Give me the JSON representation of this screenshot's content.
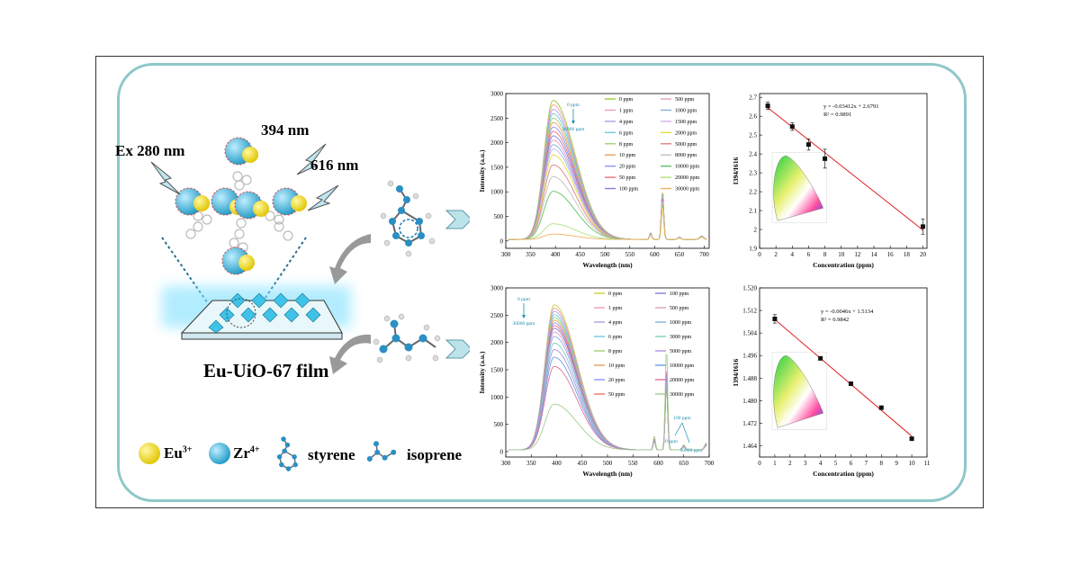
{
  "left": {
    "excitation_label": "Ex 280 nm",
    "emission1_label": "394 nm",
    "emission2_label": "616 nm",
    "film_label": "Eu-UiO-67 film",
    "legend": [
      {
        "label": "Eu",
        "sup": "3+",
        "color": "#f5e030"
      },
      {
        "label": "Zr",
        "sup": "4+",
        "color": "#35b1d6"
      },
      {
        "label": "styrene"
      },
      {
        "label": "isoprene"
      }
    ]
  },
  "chart_data": [
    {
      "type": "line",
      "id": "styrene-spectra",
      "xlabel": "Wavelength (nm)",
      "ylabel": "Intensity (a.u.)",
      "xlim": [
        300,
        710
      ],
      "ylim": [
        -150,
        3000
      ],
      "xticks": [
        300,
        350,
        400,
        450,
        500,
        550,
        600,
        650,
        700
      ],
      "yticks": [
        0,
        500,
        1000,
        1500,
        2000,
        2500,
        3000
      ],
      "annotation_top": "0 ppm",
      "annotation_bottom": "30000 ppm",
      "series": [
        {
          "name": "0 ppm",
          "peak": 2830,
          "p616": 1020,
          "color": "#9acd32"
        },
        {
          "name": "1 ppm",
          "peak": 2740,
          "p616": 1000,
          "color": "#f0a0b0"
        },
        {
          "name": "4 ppm",
          "peak": 2650,
          "p616": 980,
          "color": "#b0a0e0"
        },
        {
          "name": "6 ppm",
          "peak": 2560,
          "p616": 960,
          "color": "#70c8e0"
        },
        {
          "name": "8 ppm",
          "peak": 2470,
          "p616": 940,
          "color": "#a0d070"
        },
        {
          "name": "10 ppm",
          "peak": 2380,
          "p616": 920,
          "color": "#e8a060"
        },
        {
          "name": "20 ppm",
          "peak": 2290,
          "p616": 900,
          "color": "#9090ff"
        },
        {
          "name": "50 ppm",
          "peak": 2200,
          "p616": 880,
          "color": "#f07070"
        },
        {
          "name": "100 ppm",
          "peak": 2110,
          "p616": 860,
          "color": "#8080e0"
        },
        {
          "name": "500 ppm",
          "peak": 2020,
          "p616": 840,
          "color": "#e0a0c0"
        },
        {
          "name": "1000 ppm",
          "peak": 1930,
          "p616": 820,
          "color": "#80b0e0"
        },
        {
          "name": "1500 ppm",
          "peak": 1840,
          "p616": 800,
          "color": "#d0b0f0"
        },
        {
          "name": "2000 ppm",
          "peak": 1720,
          "p616": 780,
          "color": "#e0e040"
        },
        {
          "name": "5000 ppm",
          "peak": 1520,
          "p616": 760,
          "color": "#e08080"
        },
        {
          "name": "8000 ppm",
          "peak": 1280,
          "p616": 740,
          "color": "#c0c0c0"
        },
        {
          "name": "10000 ppm",
          "peak": 980,
          "p616": 720,
          "color": "#60c060"
        },
        {
          "name": "20000 ppm",
          "peak": 320,
          "p616": 700,
          "color": "#b0e080"
        },
        {
          "name": "30000 ppm",
          "peak": 110,
          "p616": 680,
          "color": "#f0b060"
        }
      ]
    },
    {
      "type": "scatter",
      "id": "styrene-linear",
      "xlabel": "Concentration (ppm)",
      "ylabel": "I394/I616",
      "xlim": [
        0,
        20.5
      ],
      "ylim": [
        1.9,
        2.72
      ],
      "xticks": [
        0,
        2,
        4,
        6,
        8,
        10,
        12,
        14,
        16,
        18,
        20
      ],
      "yticks": [
        1.9,
        2.0,
        2.1,
        2.2,
        2.3,
        2.4,
        2.5,
        2.6,
        2.7
      ],
      "equation": "y = -0.03412x + 2.6791",
      "r2": "R² = 0.9891",
      "x": [
        1,
        4,
        6,
        8,
        20
      ],
      "y": [
        2.655,
        2.545,
        2.45,
        2.375,
        2.015
      ],
      "err": [
        0.02,
        0.02,
        0.03,
        0.05,
        0.04
      ],
      "fit": {
        "slope": -0.03412,
        "intercept": 2.6791
      }
    },
    {
      "type": "line",
      "id": "isoprene-spectra",
      "xlabel": "Wavelength (nm)",
      "ylabel": "Intensity (a.u.)",
      "xlim": [
        300,
        700
      ],
      "ylim": [
        -100,
        3000
      ],
      "xticks": [
        300,
        350,
        400,
        450,
        500,
        550,
        600,
        650,
        700
      ],
      "yticks": [
        0,
        500,
        1000,
        1500,
        2000,
        2500,
        3000
      ],
      "annotation_top": "0 ppm",
      "annotation_bottom": "30000 ppm",
      "annotation2_top": "100 ppm",
      "annotation2_mid": "0 ppm",
      "annotation2_bottom": "30000 ppm",
      "series": [
        {
          "name": "0 ppm",
          "peak": 2660,
          "p616": 1180,
          "color": "#c8d040"
        },
        {
          "name": "1 ppm",
          "peak": 2600,
          "p616": 1200,
          "color": "#f0a0b0"
        },
        {
          "name": "4 ppm",
          "peak": 2540,
          "p616": 1220,
          "color": "#b0a0e0"
        },
        {
          "name": "6 ppm",
          "peak": 2480,
          "p616": 1240,
          "color": "#70c8e0"
        },
        {
          "name": "8 ppm",
          "peak": 2430,
          "p616": 1260,
          "color": "#a0d070"
        },
        {
          "name": "10 ppm",
          "peak": 2380,
          "p616": 1280,
          "color": "#e8a060"
        },
        {
          "name": "20 ppm",
          "peak": 2330,
          "p616": 1300,
          "color": "#9090ff"
        },
        {
          "name": "50 ppm",
          "peak": 2280,
          "p616": 1320,
          "color": "#f07070"
        },
        {
          "name": "100 ppm",
          "peak": 2230,
          "p616": 1340,
          "color": "#8080e0"
        },
        {
          "name": "500 ppm",
          "peak": 2160,
          "p616": 1360,
          "color": "#e0a0c0"
        },
        {
          "name": "1000 ppm",
          "peak": 2080,
          "p616": 1380,
          "color": "#80b0e0"
        },
        {
          "name": "3000 ppm",
          "peak": 1960,
          "p616": 1400,
          "color": "#80d0c0"
        },
        {
          "name": "5000 ppm",
          "peak": 1840,
          "p616": 1440,
          "color": "#b090e0"
        },
        {
          "name": "10000 ppm",
          "peak": 1700,
          "p616": 1500,
          "color": "#70a0e0"
        },
        {
          "name": "20000 ppm",
          "peak": 1530,
          "p616": 1560,
          "color": "#e070a0"
        },
        {
          "name": "30000 ppm",
          "peak": 840,
          "p616": 1900,
          "color": "#a0d090"
        }
      ]
    },
    {
      "type": "scatter",
      "id": "isoprene-linear",
      "xlabel": "Concentration (ppm)",
      "ylabel": "I394/I616",
      "xlim": [
        0,
        11
      ],
      "ylim": [
        1.46,
        1.52
      ],
      "xticks": [
        0,
        1,
        2,
        3,
        4,
        5,
        6,
        7,
        8,
        9,
        10,
        11
      ],
      "yticks": [
        "1.464",
        "1.472",
        "1.480",
        "1.488",
        "1.496",
        "1.504",
        "1.512",
        "1.520"
      ],
      "equation": "y = -0.0046x + 1.5134",
      "r2": "R² = 0.9842",
      "x": [
        1,
        4,
        6,
        8,
        10
      ],
      "y": [
        1.509,
        1.495,
        1.486,
        1.4775,
        1.4665
      ],
      "err": [
        0.0015,
        0.0005,
        0.0006,
        0.0006,
        0.0006
      ],
      "fit": {
        "slope": -0.0046,
        "intercept": 1.5134
      }
    }
  ]
}
